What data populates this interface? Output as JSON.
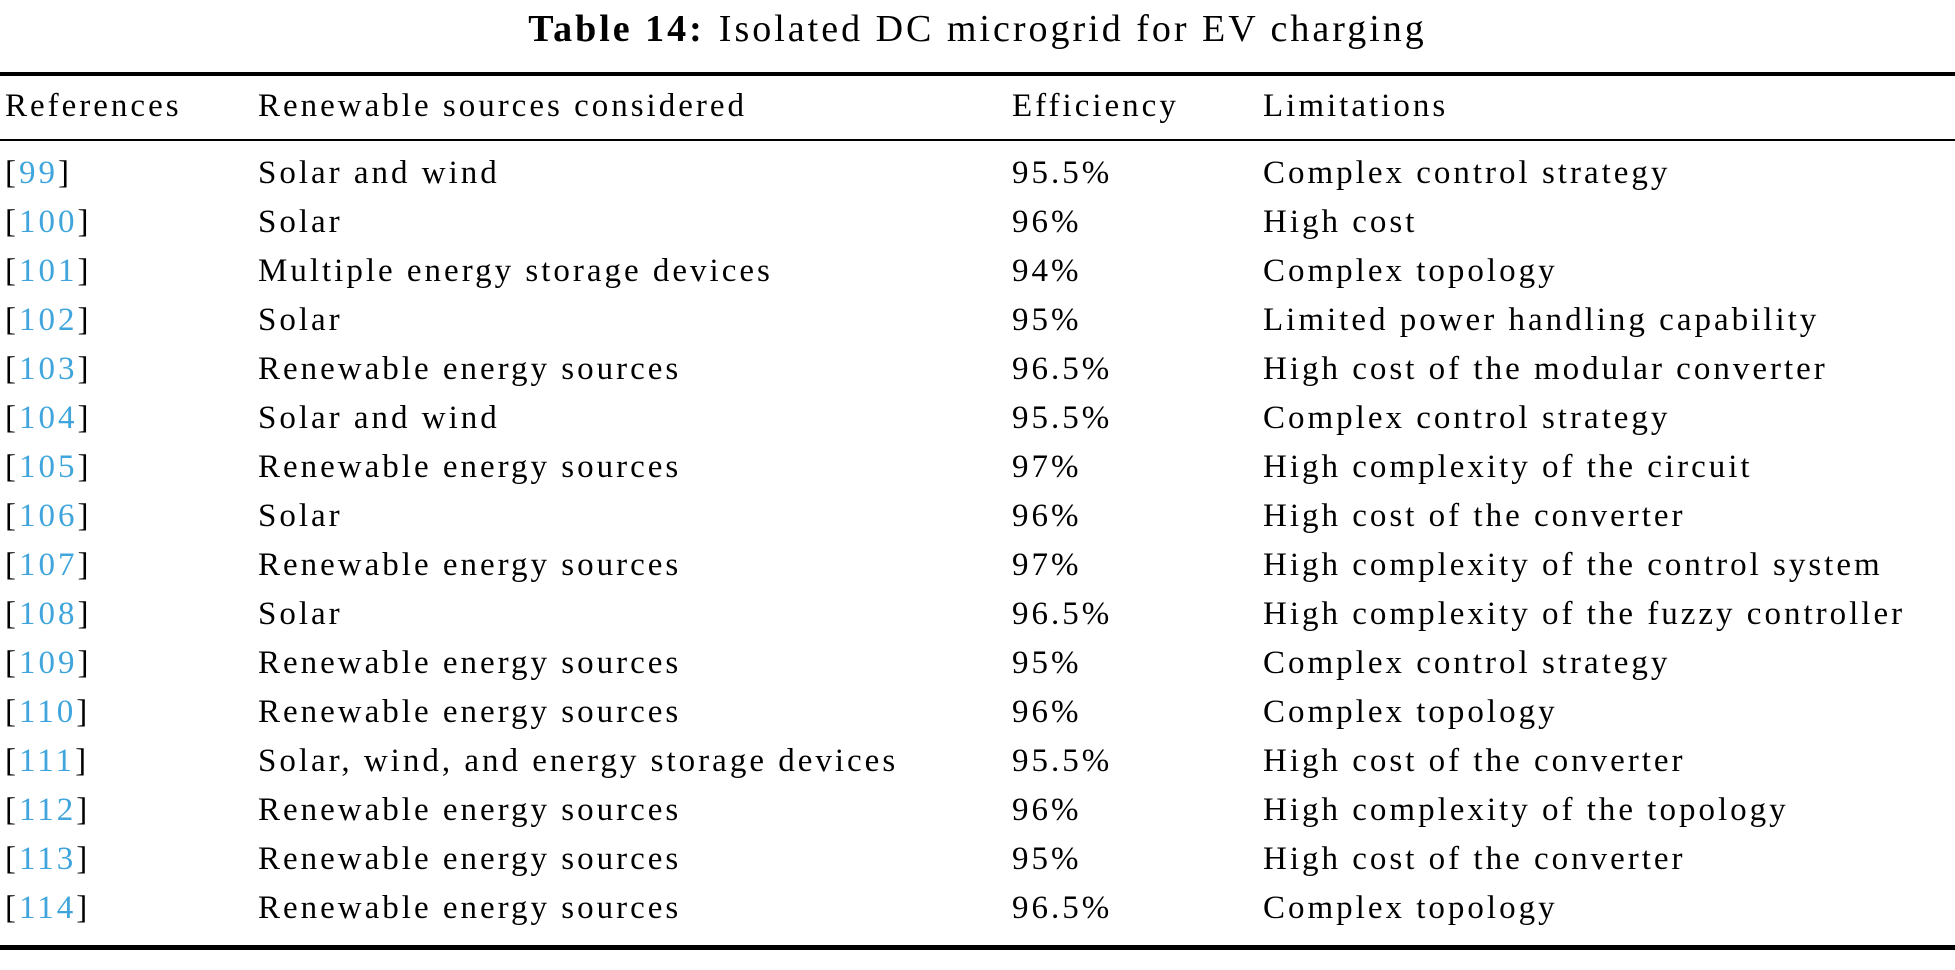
{
  "caption": {
    "label": "Table 14:",
    "title": "Isolated DC microgrid for EV charging"
  },
  "table": {
    "bracket_open": "[",
    "bracket_close": "]",
    "columns": [
      "References",
      "Renewable sources considered",
      "Efficiency",
      "Limitations"
    ],
    "rows": [
      {
        "ref": "99",
        "sources": "Solar and wind",
        "efficiency": "95.5%",
        "limitations": "Complex control strategy"
      },
      {
        "ref": "100",
        "sources": "Solar",
        "efficiency": "96%",
        "limitations": "High cost"
      },
      {
        "ref": "101",
        "sources": "Multiple energy storage devices",
        "efficiency": "94%",
        "limitations": "Complex topology"
      },
      {
        "ref": "102",
        "sources": "Solar",
        "efficiency": "95%",
        "limitations": "Limited power handling capability"
      },
      {
        "ref": "103",
        "sources": "Renewable energy sources",
        "efficiency": "96.5%",
        "limitations": "High cost of the modular converter"
      },
      {
        "ref": "104",
        "sources": "Solar and wind",
        "efficiency": "95.5%",
        "limitations": "Complex control strategy"
      },
      {
        "ref": "105",
        "sources": "Renewable energy sources",
        "efficiency": "97%",
        "limitations": "High complexity of the circuit"
      },
      {
        "ref": "106",
        "sources": "Solar",
        "efficiency": "96%",
        "limitations": "High cost of the converter"
      },
      {
        "ref": "107",
        "sources": "Renewable energy sources",
        "efficiency": "97%",
        "limitations": "High complexity of the control system"
      },
      {
        "ref": "108",
        "sources": "Solar",
        "efficiency": "96.5%",
        "limitations": "High complexity of the fuzzy controller"
      },
      {
        "ref": "109",
        "sources": "Renewable energy sources",
        "efficiency": "95%",
        "limitations": "Complex control strategy"
      },
      {
        "ref": "110",
        "sources": "Renewable energy sources",
        "efficiency": "96%",
        "limitations": "Complex topology"
      },
      {
        "ref": "111",
        "sources": "Solar, wind, and energy storage devices",
        "efficiency": "95.5%",
        "limitations": "High cost of the converter"
      },
      {
        "ref": "112",
        "sources": "Renewable energy sources",
        "efficiency": "96%",
        "limitations": "High complexity of the topology"
      },
      {
        "ref": "113",
        "sources": "Renewable energy sources",
        "efficiency": "95%",
        "limitations": "High cost of the converter"
      },
      {
        "ref": "114",
        "sources": "Renewable energy sources",
        "efficiency": "96.5%",
        "limitations": "Complex topology"
      }
    ]
  },
  "colors": {
    "citation": "#3FA5DC",
    "text": "#000000",
    "rule": "#000000"
  }
}
